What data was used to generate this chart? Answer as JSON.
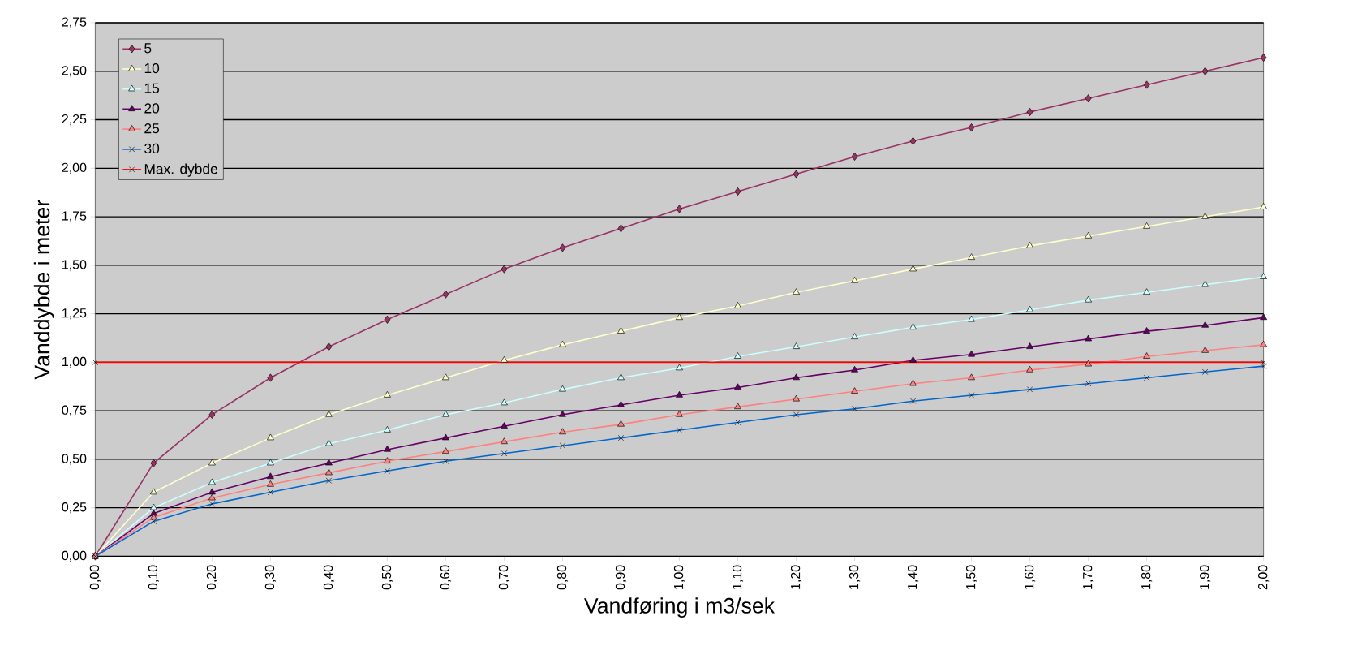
{
  "chart_data": {
    "type": "line",
    "xlabel": "Vandføring i m3/sek",
    "ylabel": "Vanddybde i meter",
    "x": [
      0,
      0.1,
      0.2,
      0.3,
      0.4,
      0.5,
      0.6,
      0.7,
      0.8,
      0.9,
      1.0,
      1.1,
      1.2,
      1.3,
      1.4,
      1.5,
      1.6,
      1.7,
      1.8,
      1.9,
      2.0
    ],
    "series": [
      {
        "name": "5",
        "color": "#993366",
        "marker": "diamond",
        "values": [
          0,
          0.48,
          0.73,
          0.92,
          1.08,
          1.22,
          1.35,
          1.48,
          1.59,
          1.69,
          1.79,
          1.88,
          1.97,
          2.06,
          2.14,
          2.21,
          2.29,
          2.36,
          2.43,
          2.5,
          2.57
        ]
      },
      {
        "name": "10",
        "color": "#ffffcc",
        "marker": "triangle",
        "values": [
          0,
          0.33,
          0.48,
          0.61,
          0.73,
          0.83,
          0.92,
          1.01,
          1.09,
          1.16,
          1.23,
          1.29,
          1.36,
          1.42,
          1.48,
          1.54,
          1.6,
          1.65,
          1.7,
          1.75,
          1.8
        ]
      },
      {
        "name": "15",
        "color": "#ccffff",
        "marker": "triangle",
        "values": [
          0,
          0.25,
          0.38,
          0.48,
          0.58,
          0.65,
          0.73,
          0.79,
          0.86,
          0.92,
          0.97,
          1.03,
          1.08,
          1.13,
          1.18,
          1.22,
          1.27,
          1.32,
          1.36,
          1.4,
          1.44
        ]
      },
      {
        "name": "20",
        "color": "#660066",
        "marker": "triangle",
        "values": [
          0,
          0.22,
          0.33,
          0.41,
          0.48,
          0.55,
          0.61,
          0.67,
          0.73,
          0.78,
          0.83,
          0.87,
          0.92,
          0.96,
          1.01,
          1.04,
          1.08,
          1.12,
          1.16,
          1.19,
          1.23
        ]
      },
      {
        "name": "25",
        "color": "#ff8080",
        "marker": "triangle",
        "values": [
          0,
          0.2,
          0.3,
          0.37,
          0.43,
          0.49,
          0.54,
          0.59,
          0.64,
          0.68,
          0.73,
          0.77,
          0.81,
          0.85,
          0.89,
          0.92,
          0.96,
          0.99,
          1.03,
          1.06,
          1.09
        ]
      },
      {
        "name": "30",
        "color": "#0066cc",
        "marker": "cross",
        "values": [
          0,
          0.18,
          0.27,
          0.33,
          0.39,
          0.44,
          0.49,
          0.53,
          0.57,
          0.61,
          0.65,
          0.69,
          0.73,
          0.76,
          0.8,
          0.83,
          0.86,
          0.89,
          0.92,
          0.95,
          0.98
        ]
      },
      {
        "name": "Max. dybde",
        "color": "#ff0000",
        "marker": "cross",
        "x": [
          0,
          2.0
        ],
        "values": [
          1,
          1
        ]
      }
    ],
    "xlim": [
      0,
      2.0
    ],
    "ylim": [
      0,
      2.75
    ],
    "xticks": [
      {
        "value": 0,
        "label": "0,00"
      },
      {
        "value": 0.1,
        "label": "0,10"
      },
      {
        "value": 0.2,
        "label": "0,20"
      },
      {
        "value": 0.3,
        "label": "0,30"
      },
      {
        "value": 0.4,
        "label": "0,40"
      },
      {
        "value": 0.5,
        "label": "0,50"
      },
      {
        "value": 0.6,
        "label": "0,60"
      },
      {
        "value": 0.7,
        "label": "0,70"
      },
      {
        "value": 0.8,
        "label": "0,80"
      },
      {
        "value": 0.9,
        "label": "0,90"
      },
      {
        "value": 1.0,
        "label": "1,00"
      },
      {
        "value": 1.1,
        "label": "1,10"
      },
      {
        "value": 1.2,
        "label": "1,20"
      },
      {
        "value": 1.3,
        "label": "1,30"
      },
      {
        "value": 1.4,
        "label": "1,40"
      },
      {
        "value": 1.5,
        "label": "1,50"
      },
      {
        "value": 1.6,
        "label": "1,60"
      },
      {
        "value": 1.7,
        "label": "1,70"
      },
      {
        "value": 1.8,
        "label": "1,80"
      },
      {
        "value": 1.9,
        "label": "1,90"
      },
      {
        "value": 2.0,
        "label": "2,00"
      }
    ],
    "yticks": [
      {
        "value": 0,
        "label": "0,00"
      },
      {
        "value": 0.25,
        "label": "0,25"
      },
      {
        "value": 0.5,
        "label": "0,50"
      },
      {
        "value": 0.75,
        "label": "0,75"
      },
      {
        "value": 1.0,
        "label": "1,00"
      },
      {
        "value": 1.25,
        "label": "1,25"
      },
      {
        "value": 1.5,
        "label": "1,50"
      },
      {
        "value": 1.75,
        "label": "1,75"
      },
      {
        "value": 2.0,
        "label": "2,00"
      },
      {
        "value": 2.25,
        "label": "2,25"
      },
      {
        "value": 2.5,
        "label": "2,50"
      },
      {
        "value": 2.75,
        "label": "2,75"
      }
    ],
    "grid": "y",
    "legend": "top left",
    "line_style": "solid"
  }
}
